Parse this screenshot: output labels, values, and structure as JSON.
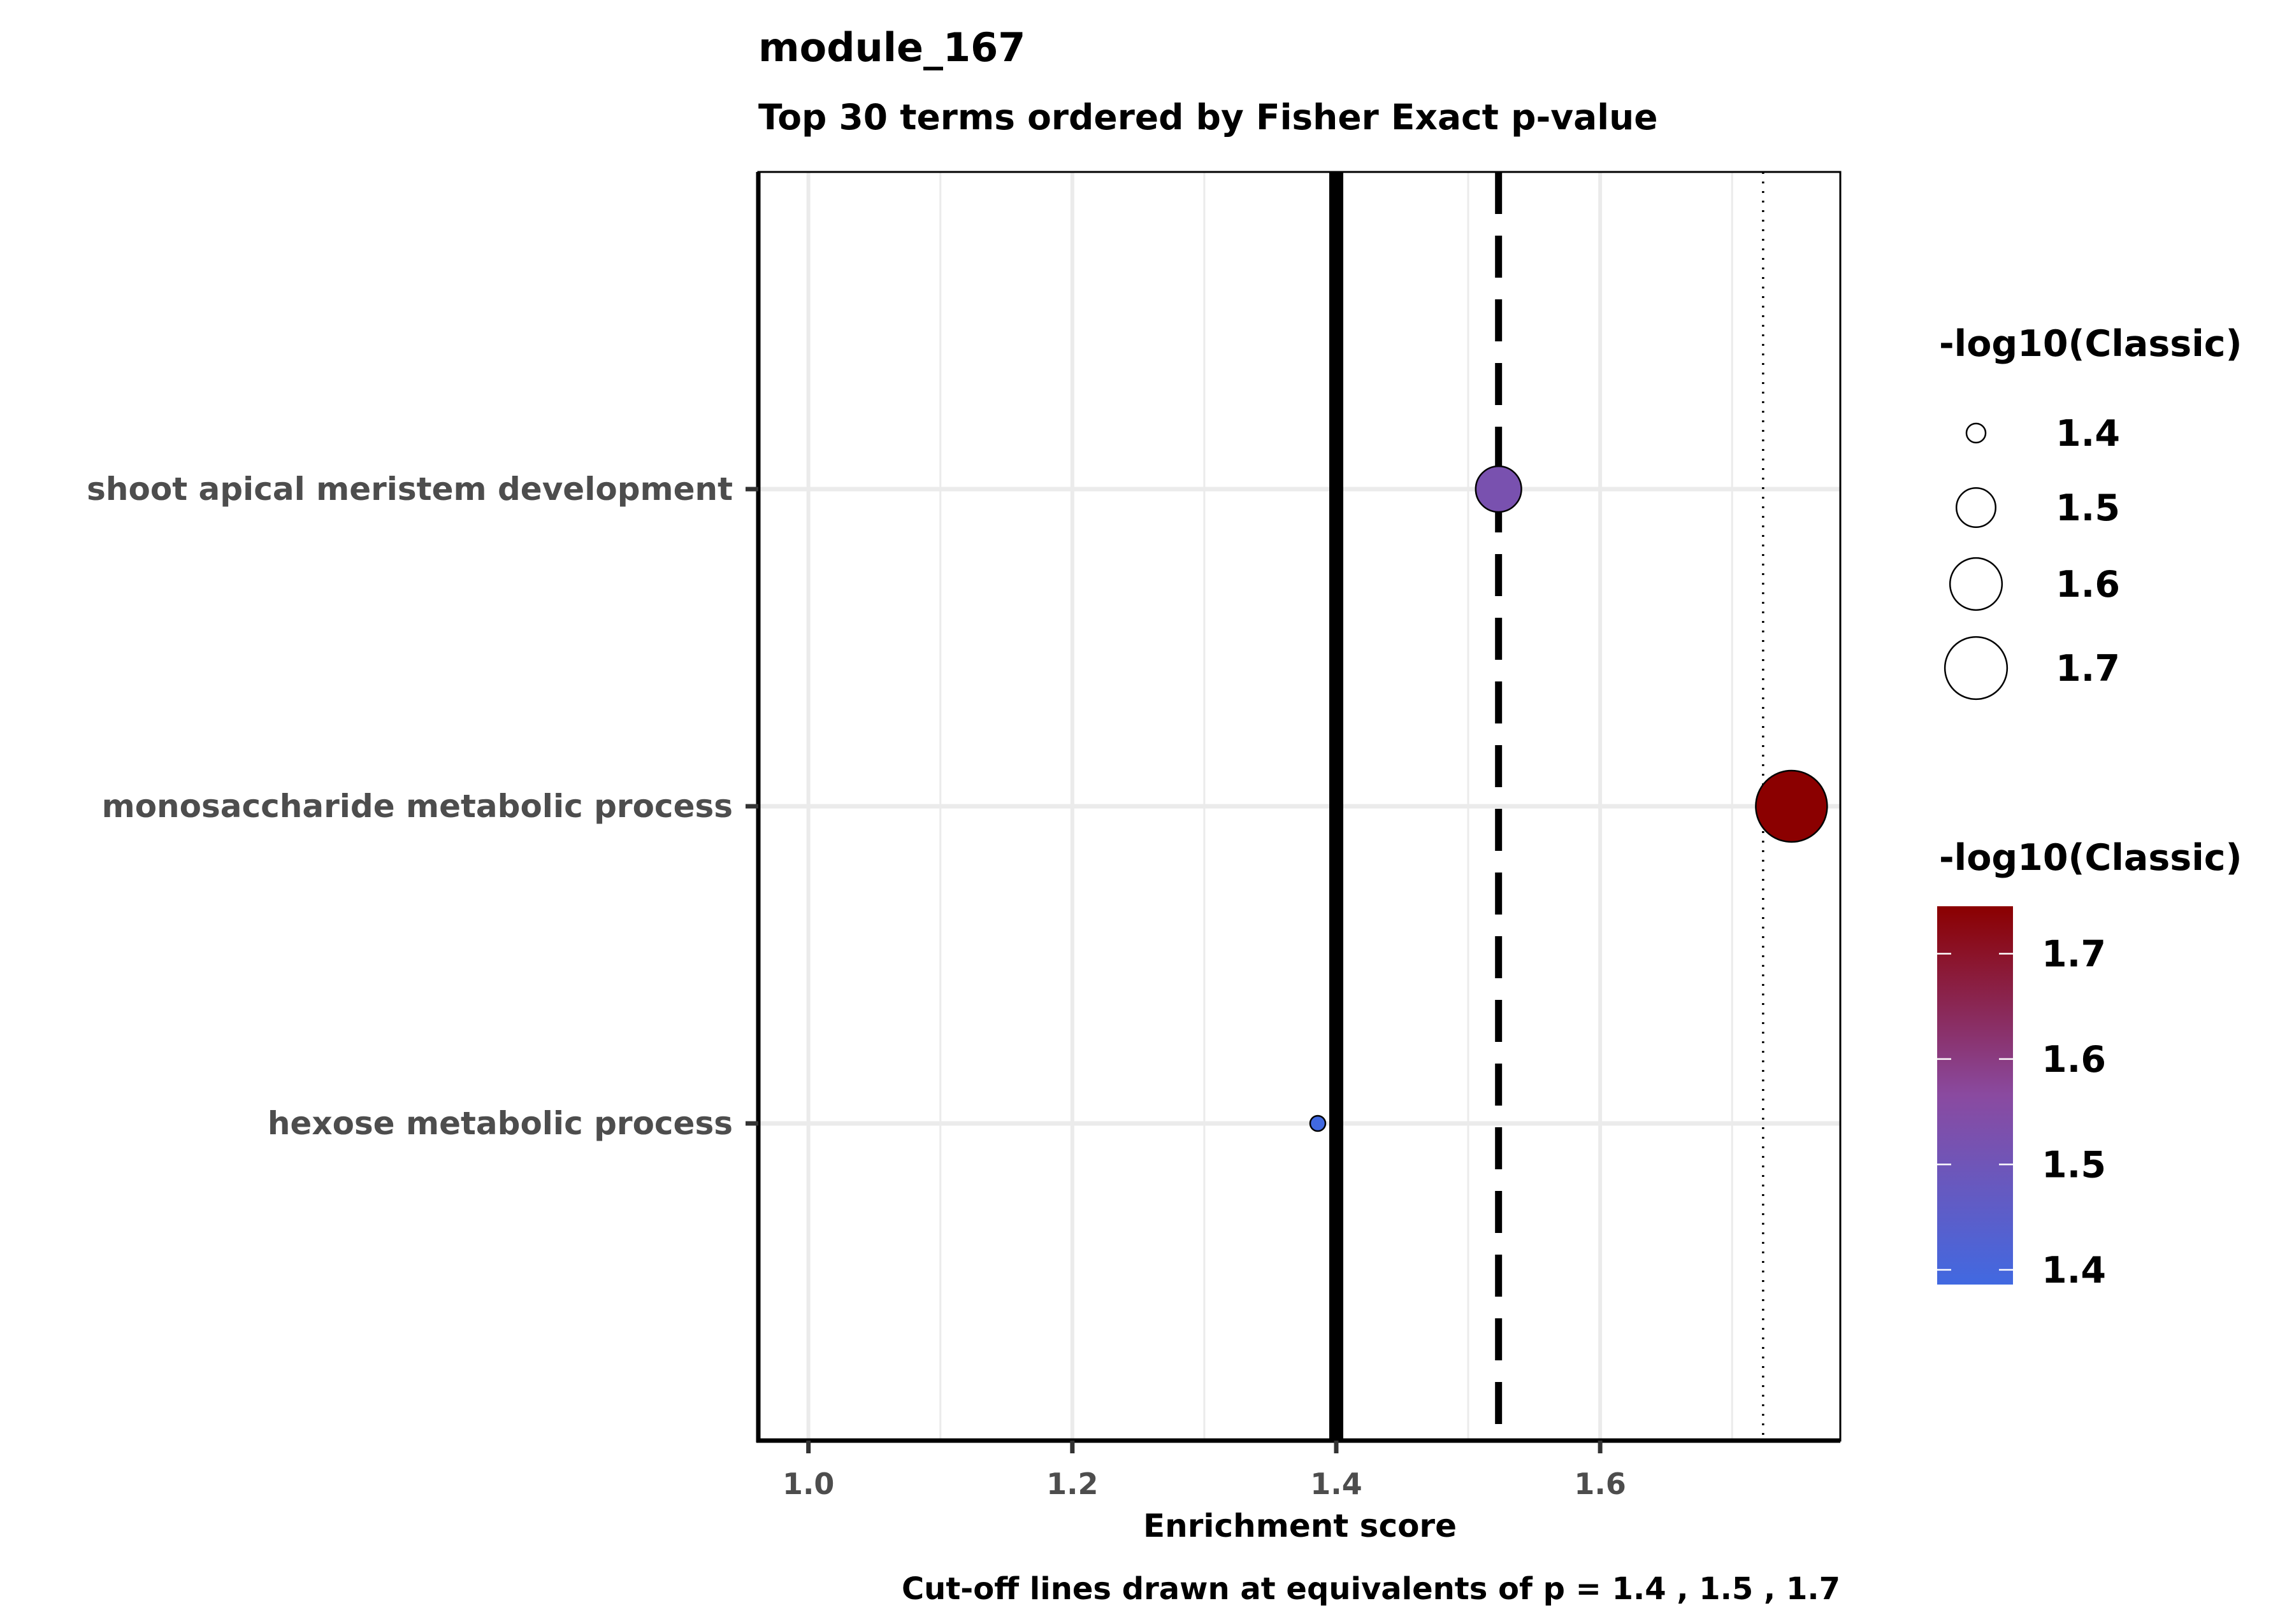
{
  "chart_data": {
    "type": "scatter",
    "title": "module_167",
    "subtitle": "Top 30 terms ordered by Fisher Exact p-value",
    "xlabel": "Enrichment score",
    "caption": "Cut-off lines drawn at equivalents of p = 1.4 , 1.5 , 1.7",
    "xlim": [
      0.962,
      1.782
    ],
    "xticks": [
      1.0,
      1.2,
      1.4,
      1.6
    ],
    "xtick_labels": [
      "1.0",
      "1.2",
      "1.4",
      "1.6"
    ],
    "x_minor_gridlines": [
      1.1,
      1.3,
      1.5,
      1.7
    ],
    "grid": true,
    "categories": [
      "shoot apical meristem development",
      "monosaccharide metabolic process",
      "hexose metabolic process"
    ],
    "points": [
      {
        "term": "shoot apical meristem development",
        "x": 1.523,
        "value": 1.523
      },
      {
        "term": "monosaccharide metabolic process",
        "x": 1.745,
        "value": 1.745
      },
      {
        "term": "hexose metabolic process",
        "x": 1.386,
        "value": 1.386
      }
    ],
    "cutoff_lines": [
      {
        "x": 1.4,
        "style": "solid"
      },
      {
        "x": 1.523,
        "style": "dashed"
      },
      {
        "x": 1.7235,
        "style": "dotted"
      }
    ],
    "size_legend": {
      "title": "-log10(Classic)",
      "breaks": [
        1.4,
        1.5,
        1.6,
        1.7
      ],
      "labels": [
        "1.4",
        "1.5",
        "1.6",
        "1.7"
      ]
    },
    "color_legend": {
      "title": "-log10(Classic)",
      "breaks": [
        1.4,
        1.5,
        1.6,
        1.7
      ],
      "labels": [
        "1.4",
        "1.5",
        "1.6",
        "1.7"
      ],
      "range": [
        1.386,
        1.745
      ],
      "low_color": "#4169e1",
      "high_color": "#8b0000"
    },
    "legend_position": "right"
  }
}
